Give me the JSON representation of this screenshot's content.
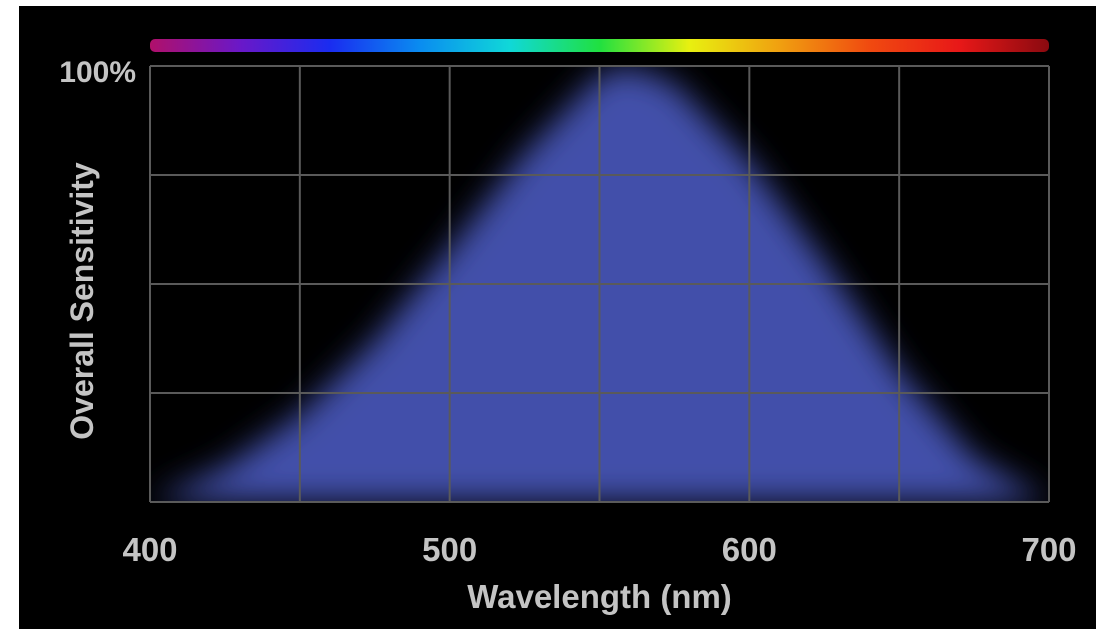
{
  "chart_data": {
    "type": "area",
    "title": "",
    "xlabel": "Wavelength (nm)",
    "ylabel": "Overall Sensitivity",
    "x_ticks": [
      "400",
      "500",
      "600",
      "700"
    ],
    "y_ticks": [
      "100%"
    ],
    "xlim": [
      400,
      700
    ],
    "ylim": [
      0,
      100
    ],
    "grid": true,
    "legend": "none",
    "series": [
      {
        "x": [
          400,
          425,
          450,
          475,
          500,
          525,
          550,
          560,
          575,
          600,
          625,
          650,
          675,
          700
        ],
        "values": [
          0,
          8,
          20,
          37,
          58,
          80,
          98,
          100,
          96,
          78,
          55,
          30,
          10,
          0
        ]
      }
    ],
    "spectrum_band": {
      "from_nm": 400,
      "to_nm": 700,
      "colors": [
        "#b0106a",
        "#6a18c8",
        "#1a2cf0",
        "#0a8cf0",
        "#10d8d8",
        "#20e040",
        "#e8f010",
        "#f0a010",
        "#f04a10",
        "#e81818",
        "#8a0a10"
      ]
    },
    "colors": {
      "background": "#000000",
      "grid": "#5a5a5a",
      "area": "#4857b8",
      "text": "#c4c4c4"
    }
  }
}
